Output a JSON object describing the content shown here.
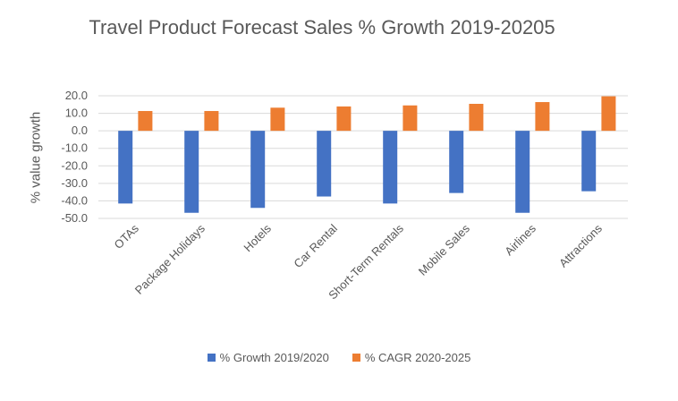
{
  "chart_data": {
    "type": "bar",
    "title": "Travel Product Forecast Sales % Growth 2019-20205",
    "xlabel": "",
    "ylabel": "% value growth",
    "categories": [
      "OTAs",
      "Package Holidays",
      "Hotels",
      "Car Rental",
      "Short-Term Rentals",
      "Mobile Sales",
      "Airlines",
      "Attractions"
    ],
    "series": [
      {
        "name": "% Growth 2019/2020",
        "color": "#4472C4",
        "values": [
          -41.5,
          -46.8,
          -44.0,
          -37.5,
          -41.5,
          -35.5,
          -46.8,
          -34.5
        ]
      },
      {
        "name": "% CAGR 2020-2025",
        "color": "#ED7D31",
        "values": [
          11.3,
          11.3,
          13.2,
          13.9,
          14.5,
          15.4,
          16.4,
          19.7
        ]
      }
    ],
    "yticks": [
      "20.0",
      "10.0",
      "0.0",
      "-10.0",
      "-20.0",
      "-30.0",
      "-40.0",
      "-50.0"
    ],
    "ylim": [
      -50,
      20
    ],
    "grid": true,
    "legend_position": "bottom"
  }
}
